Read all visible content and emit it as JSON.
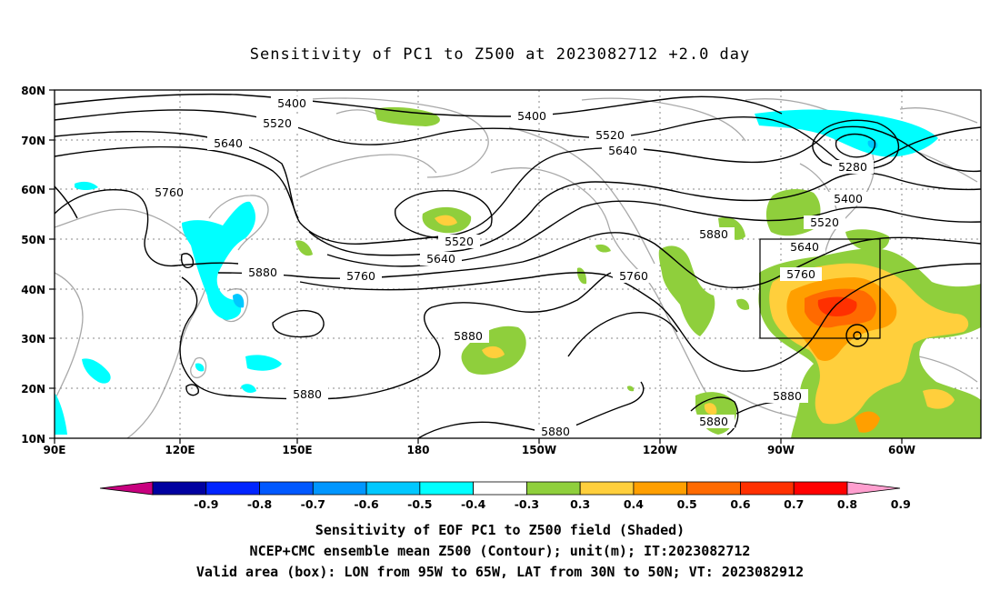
{
  "title": "Sensitivity of PC1 to Z500 at 2023082712 +2.0 day",
  "lat_labels": [
    "80N",
    "70N",
    "60N",
    "50N",
    "40N",
    "30N",
    "20N",
    "10N"
  ],
  "lon_labels": [
    "90E",
    "120E",
    "150E",
    "180",
    "150W",
    "120W",
    "90W",
    "60W"
  ],
  "contour_labels": [
    "5400",
    "5520",
    "5640",
    "5400",
    "5520",
    "5640",
    "5280",
    "5400",
    "5520",
    "5640",
    "5760",
    "5760",
    "5880",
    "5520",
    "5640",
    "5760",
    "5760",
    "5880",
    "5880",
    "5880",
    "5880",
    "5880",
    "5880"
  ],
  "colorbar": {
    "colors": [
      "#c8007f",
      "#0000a0",
      "#0024ff",
      "#0058ff",
      "#0096ff",
      "#00c8ff",
      "#00ffff",
      "#ffffff",
      "#8fcf3c",
      "#ffcf3c",
      "#ff9f00",
      "#ff6a00",
      "#ff3000",
      "#ff0000",
      "#ff9fcf"
    ],
    "labels": [
      "-0.9",
      "-0.8",
      "-0.7",
      "-0.6",
      "-0.5",
      "-0.4",
      "-0.3",
      "0.3",
      "0.4",
      "0.5",
      "0.6",
      "0.7",
      "0.8",
      "0.9"
    ]
  },
  "captions": [
    "Sensitivity of EOF PC1 to Z500 field (Shaded)",
    "NCEP+CMC ensemble mean Z500 (Contour); unit(m); IT:2023082712",
    "Valid area (box): LON from 95W to 65W, LAT from 30N to 50N; VT: 2023082912"
  ]
}
